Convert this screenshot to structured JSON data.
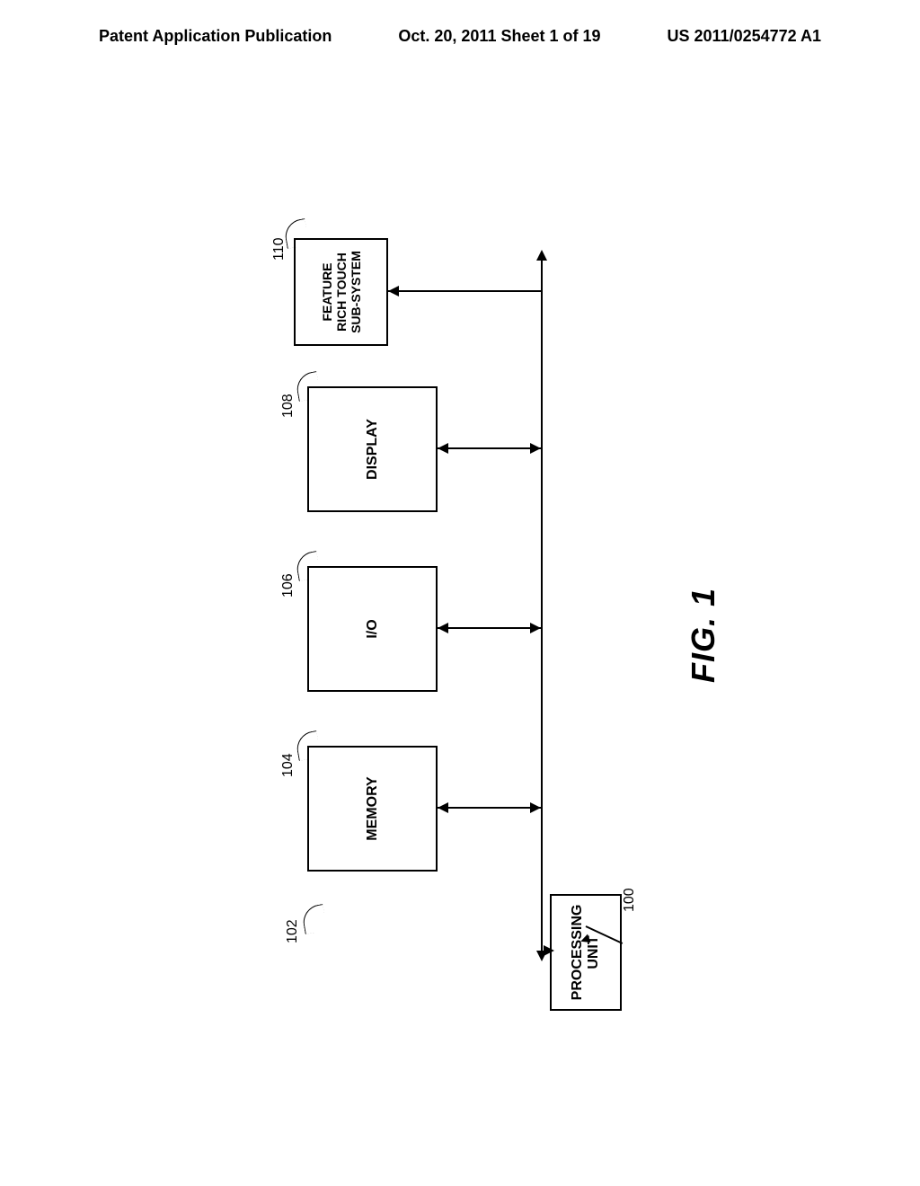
{
  "header": {
    "left": "Patent Application Publication",
    "center": "Oct. 20, 2011  Sheet 1 of 19",
    "right": "US 2011/0254772 A1"
  },
  "diagram": {
    "type": "flowchart",
    "blocks": {
      "processing": {
        "label": "PROCESSING\nUNIT",
        "ref": "102"
      },
      "memory": {
        "label": "MEMORY",
        "ref": "104"
      },
      "io": {
        "label": "I/O",
        "ref": "106"
      },
      "display": {
        "label": "DISPLAY",
        "ref": "108"
      },
      "feature": {
        "label": "FEATURE\nRICH TOUCH\nSUB-SYSTEM",
        "ref": "110"
      }
    },
    "system_ref": "100",
    "figure_label": "FIG. 1",
    "colors": {
      "background": "#ffffff",
      "line": "#000000",
      "text": "#000000"
    },
    "line_width": 2,
    "font_size_block": 16,
    "font_size_label": 16,
    "font_size_figure": 36
  }
}
